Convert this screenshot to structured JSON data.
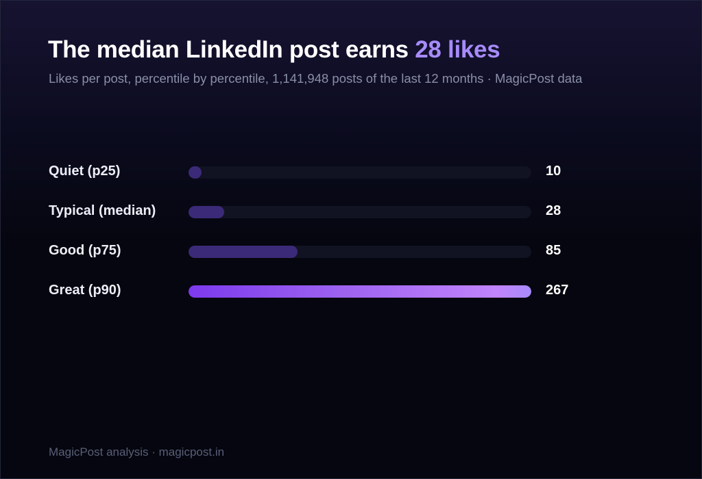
{
  "header": {
    "title_prefix": "The median LinkedIn post earns ",
    "title_highlight": "28 likes",
    "subtitle": "Likes per post, percentile by percentile, 1,141,948 posts of the last 12 months · MagicPost data"
  },
  "chart_data": {
    "type": "bar",
    "orientation": "horizontal",
    "categories": [
      "Quiet (p25)",
      "Typical (median)",
      "Good (p75)",
      "Great (p90)"
    ],
    "values": [
      10,
      28,
      85,
      267
    ],
    "value_labels": [
      "10",
      "28",
      "85",
      "267"
    ],
    "xlim": [
      0,
      267
    ],
    "grid": false,
    "colors": {
      "bar": "#3b2a78",
      "highlight_start": "#7c3aed",
      "highlight_end": "#a78bfa",
      "track": "#111322"
    }
  },
  "footer": {
    "text": "MagicPost analysis · magicpost.in"
  }
}
